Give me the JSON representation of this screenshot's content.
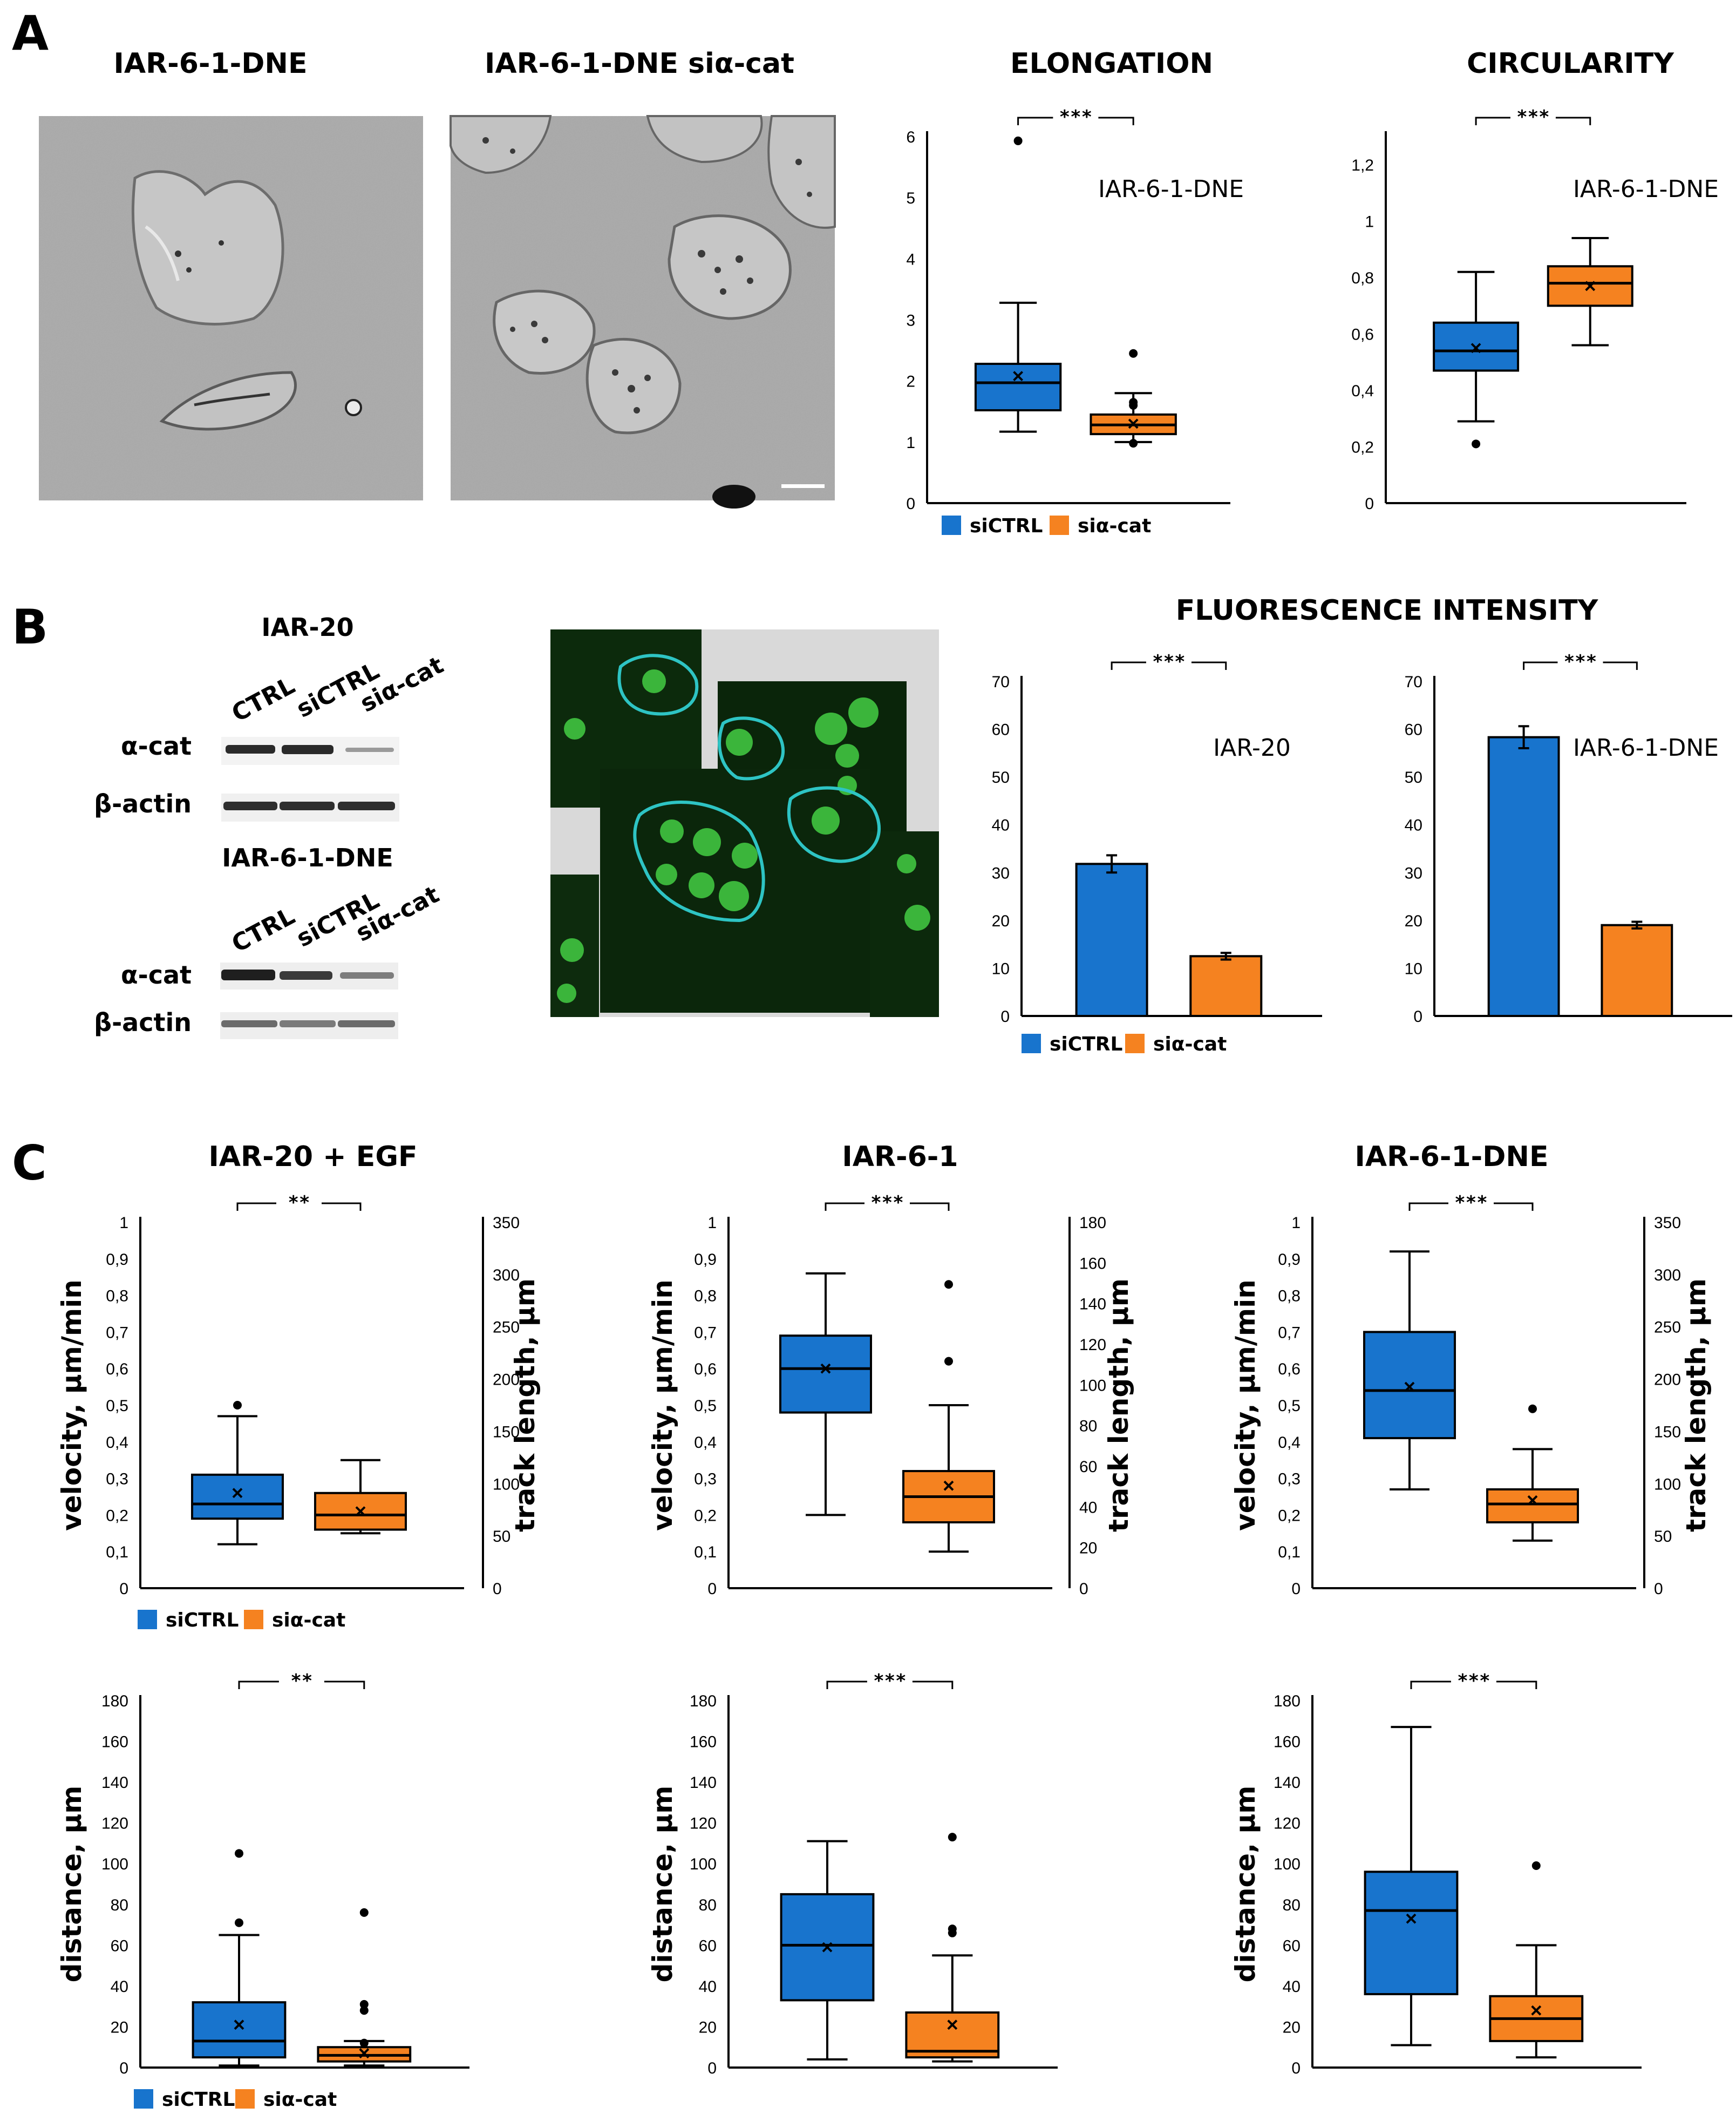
{
  "colors": {
    "siCTRL": "#1874cd",
    "sicat": "#f58220",
    "stroke": "#000000"
  },
  "panel_labels": [
    "A",
    "B",
    "C"
  ],
  "panelA": {
    "image_titles": [
      "IAR-6-1-DNE",
      "IAR-6-1-DNE siα-cat"
    ],
    "legend": [
      "siCTRL",
      "siα-cat"
    ]
  },
  "panelB": {
    "blot1": {
      "title": "IAR-20",
      "lanes": [
        "CTRL",
        "siCTRL",
        "siα-cat"
      ],
      "rows": [
        "α-cat",
        "β-actin"
      ]
    },
    "blot2": {
      "title": "IAR-6-1-DNE",
      "lanes": [
        "CTRL",
        "siCTRL",
        "siα-cat"
      ],
      "rows": [
        "α-cat",
        "β-actin"
      ]
    },
    "section_title": "FLUORESCENCE INTENSITY",
    "legend": [
      "siCTRL",
      "siα-cat"
    ]
  },
  "panelC": {
    "titles": [
      "IAR-20 + EGF",
      "IAR-6-1",
      "IAR-6-1-DNE"
    ],
    "legend": [
      "siCTRL",
      "siα-cat"
    ]
  },
  "chart_data": [
    {
      "id": "elongation",
      "type": "box",
      "title": "ELONGATION",
      "inner_label": "IAR-6-1-DNE",
      "ylim": [
        0,
        6
      ],
      "yticks": [
        "0",
        "1",
        "2",
        "3",
        "4",
        "5",
        "6"
      ],
      "significance": "***",
      "series": [
        {
          "name": "siCTRL",
          "min": 1.17,
          "q1": 1.52,
          "median": 1.97,
          "q3": 2.28,
          "max": 3.28,
          "mean": 2.08,
          "outliers": [
            5.93
          ]
        },
        {
          "name": "siα-cat",
          "min": 1.0,
          "q1": 1.13,
          "median": 1.28,
          "q3": 1.45,
          "max": 1.8,
          "mean": 1.3,
          "outliers": [
            2.45,
            1.6,
            1.65,
            0.98
          ]
        }
      ]
    },
    {
      "id": "circularity",
      "type": "box",
      "title": "CIRCULARITY",
      "inner_label": "IAR-6-1-DNE",
      "ylim": [
        0,
        1.3
      ],
      "yticks": [
        "0",
        "0,2",
        "0,4",
        "0,6",
        "0,8",
        "1",
        "1,2"
      ],
      "significance": "***",
      "series": [
        {
          "name": "siCTRL",
          "min": 0.29,
          "q1": 0.47,
          "median": 0.54,
          "q3": 0.64,
          "max": 0.82,
          "mean": 0.55,
          "outliers": [
            0.21
          ]
        },
        {
          "name": "siα-cat",
          "min": 0.56,
          "q1": 0.7,
          "median": 0.78,
          "q3": 0.84,
          "max": 0.94,
          "mean": 0.77,
          "outliers": []
        }
      ]
    },
    {
      "id": "fluor_iar20",
      "type": "bar",
      "inner_label": "IAR-20",
      "ylim": [
        0,
        70
      ],
      "yticks": [
        "0",
        "10",
        "20",
        "30",
        "40",
        "50",
        "60",
        "70"
      ],
      "significance": "***",
      "categories": [
        "siCTRL",
        "siα-cat"
      ],
      "values": [
        31.8,
        12.5
      ],
      "errors": [
        1.8,
        0.7
      ]
    },
    {
      "id": "fluor_dne",
      "type": "bar",
      "inner_label": "IAR-6-1-DNE",
      "ylim": [
        0,
        70
      ],
      "yticks": [
        "0",
        "10",
        "20",
        "30",
        "40",
        "50",
        "60",
        "70"
      ],
      "significance": "***",
      "categories": [
        "siCTRL",
        "siα-cat"
      ],
      "values": [
        58.3,
        19.0
      ],
      "errors": [
        2.3,
        0.7
      ]
    },
    {
      "id": "vel_egf",
      "type": "box",
      "ylabel": "velocity, µm/min",
      "y2label": "track length, µm",
      "ylim": [
        0,
        1
      ],
      "yticks": [
        "0",
        "0,1",
        "0,2",
        "0,3",
        "0,4",
        "0,5",
        "0,6",
        "0,7",
        "0,8",
        "0,9",
        "1"
      ],
      "y2lim": [
        0,
        350
      ],
      "y2ticks": [
        "0",
        "50",
        "100",
        "150",
        "200",
        "250",
        "300",
        "350"
      ],
      "significance": "**",
      "series": [
        {
          "name": "siCTRL",
          "min": 0.12,
          "q1": 0.19,
          "median": 0.23,
          "q3": 0.31,
          "max": 0.47,
          "mean": 0.26,
          "outliers": [
            0.5
          ]
        },
        {
          "name": "siα-cat",
          "min": 0.15,
          "q1": 0.16,
          "median": 0.2,
          "q3": 0.26,
          "max": 0.35,
          "mean": 0.21,
          "outliers": []
        }
      ]
    },
    {
      "id": "vel_iar61",
      "type": "box",
      "ylabel": "velocity, µm/min",
      "y2label": "track length, µm",
      "ylim": [
        0,
        1
      ],
      "yticks": [
        "0",
        "0,1",
        "0,2",
        "0,3",
        "0,4",
        "0,5",
        "0,6",
        "0,7",
        "0,8",
        "0,9",
        "1"
      ],
      "y2lim": [
        0,
        180
      ],
      "y2ticks": [
        "0",
        "20",
        "40",
        "60",
        "80",
        "100",
        "120",
        "140",
        "160",
        "180"
      ],
      "significance": "***",
      "series": [
        {
          "name": "siCTRL",
          "min": 0.2,
          "q1": 0.48,
          "median": 0.6,
          "q3": 0.69,
          "max": 0.86,
          "mean": 0.6,
          "outliers": []
        },
        {
          "name": "siα-cat",
          "min": 0.1,
          "q1": 0.18,
          "median": 0.25,
          "q3": 0.32,
          "max": 0.5,
          "mean": 0.28,
          "outliers": [
            0.83,
            0.62
          ]
        }
      ]
    },
    {
      "id": "vel_dne",
      "type": "box",
      "ylabel": "velocity, µm/min",
      "y2label": "track length, µm",
      "ylim": [
        0,
        1
      ],
      "yticks": [
        "0",
        "0,1",
        "0,2",
        "0,3",
        "0,4",
        "0,5",
        "0,6",
        "0,7",
        "0,8",
        "0,9",
        "1"
      ],
      "y2lim": [
        0,
        350
      ],
      "y2ticks": [
        "0",
        "50",
        "100",
        "150",
        "200",
        "250",
        "300",
        "350"
      ],
      "significance": "***",
      "series": [
        {
          "name": "siCTRL",
          "min": 0.27,
          "q1": 0.41,
          "median": 0.54,
          "q3": 0.7,
          "max": 0.92,
          "mean": 0.55,
          "outliers": []
        },
        {
          "name": "siα-cat",
          "min": 0.13,
          "q1": 0.18,
          "median": 0.23,
          "q3": 0.27,
          "max": 0.38,
          "mean": 0.24,
          "outliers": [
            0.49
          ]
        }
      ]
    },
    {
      "id": "dist_egf",
      "type": "box",
      "ylabel": "distance, µm",
      "ylim": [
        0,
        180
      ],
      "yticks": [
        "0",
        "20",
        "40",
        "60",
        "80",
        "100",
        "120",
        "140",
        "160",
        "180"
      ],
      "significance": "**",
      "series": [
        {
          "name": "siCTRL",
          "min": 1,
          "q1": 5,
          "median": 13,
          "q3": 32,
          "max": 65,
          "mean": 21,
          "outliers": [
            105,
            71
          ]
        },
        {
          "name": "siα-cat",
          "min": 1,
          "q1": 3,
          "median": 6,
          "q3": 10,
          "max": 13,
          "mean": 7,
          "outliers": [
            76,
            31,
            28,
            12
          ]
        }
      ]
    },
    {
      "id": "dist_iar61",
      "type": "box",
      "ylabel": "distance, µm",
      "ylim": [
        0,
        180
      ],
      "yticks": [
        "0",
        "20",
        "40",
        "60",
        "80",
        "100",
        "120",
        "140",
        "160",
        "180"
      ],
      "significance": "***",
      "series": [
        {
          "name": "siCTRL",
          "min": 4,
          "q1": 33,
          "median": 60,
          "q3": 85,
          "max": 111,
          "mean": 59,
          "outliers": []
        },
        {
          "name": "siα-cat",
          "min": 3,
          "q1": 5,
          "median": 8,
          "q3": 27,
          "max": 55,
          "mean": 21,
          "outliers": [
            113,
            68,
            66
          ]
        }
      ]
    },
    {
      "id": "dist_dne",
      "type": "box",
      "ylabel": "distance, µm",
      "ylim": [
        0,
        180
      ],
      "yticks": [
        "0",
        "20",
        "40",
        "60",
        "80",
        "100",
        "120",
        "140",
        "160",
        "180"
      ],
      "significance": "***",
      "series": [
        {
          "name": "siCTRL",
          "min": 11,
          "q1": 36,
          "median": 77,
          "q3": 96,
          "max": 167,
          "mean": 73,
          "outliers": []
        },
        {
          "name": "siα-cat",
          "min": 5,
          "q1": 13,
          "median": 24,
          "q3": 35,
          "max": 60,
          "mean": 28,
          "outliers": [
            99
          ]
        }
      ]
    }
  ]
}
